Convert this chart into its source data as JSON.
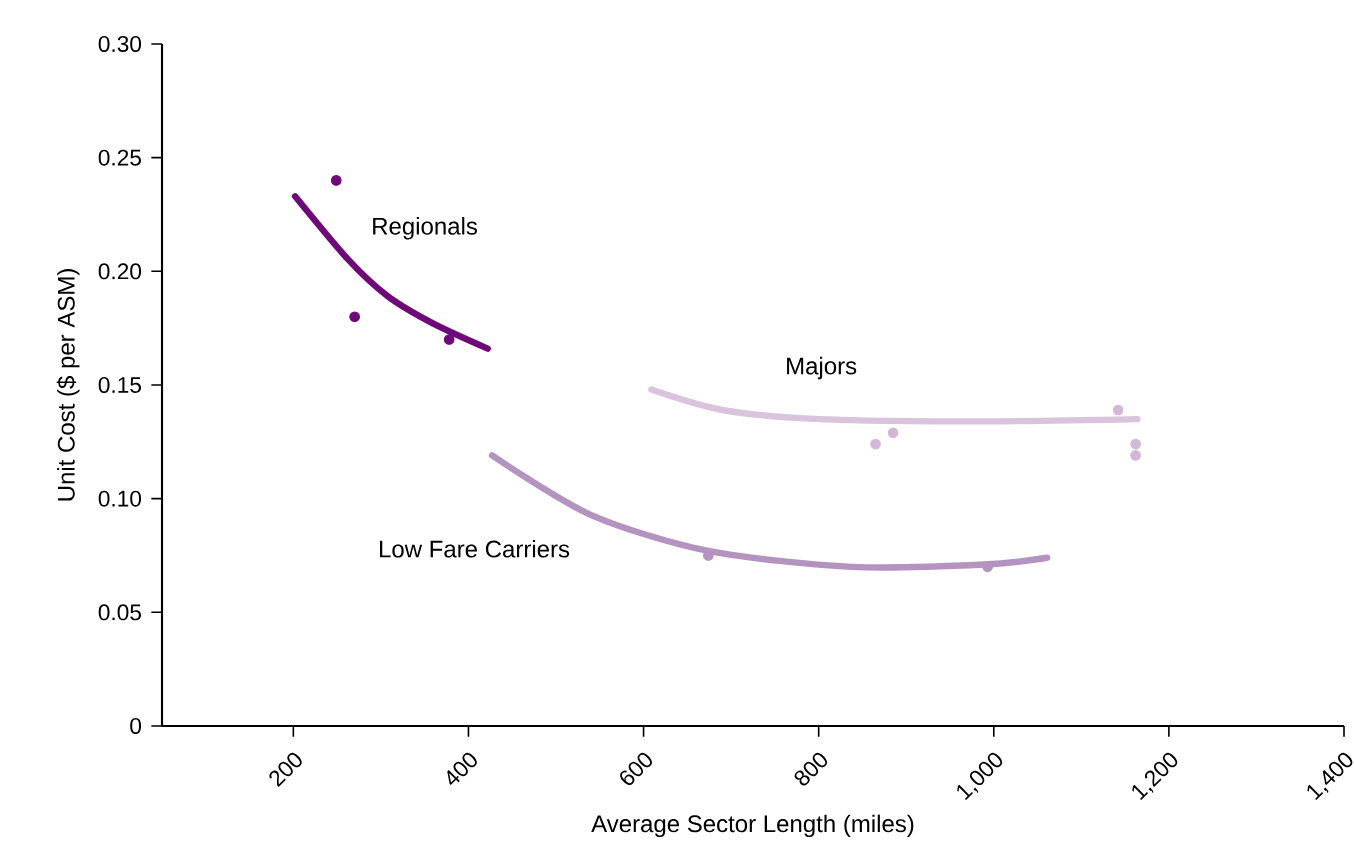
{
  "chart_data": {
    "type": "scatter",
    "xlabel": "Average Sector Length (miles)",
    "ylabel": "Unit Cost ($ per ASM)",
    "xlim": [
      50,
      1400
    ],
    "ylim": [
      0,
      0.3
    ],
    "xticks": [
      200,
      400,
      600,
      800,
      {
        "value": 1000,
        "label": "1,000"
      },
      {
        "value": 1200,
        "label": "1,200"
      },
      {
        "value": 1400,
        "label": "1,400"
      }
    ],
    "yticks": [
      0,
      {
        "value": 0.05,
        "label": "0.05"
      },
      {
        "value": 0.1,
        "label": "0.10"
      },
      {
        "value": 0.15,
        "label": "0.15"
      },
      {
        "value": 0.2,
        "label": "0.20"
      },
      {
        "value": 0.25,
        "label": "0.25"
      },
      {
        "value": 0.3,
        "label": "0.30"
      }
    ],
    "grid": false,
    "legend": false,
    "series": [
      {
        "type": "line",
        "name": "Regionals",
        "color": "#6e0a78",
        "marker": "none",
        "x": [
          202,
          263,
          308,
          360,
          422
        ],
        "values": [
          0.233,
          0.205,
          0.189,
          0.177,
          0.166
        ]
      },
      {
        "type": "scatter",
        "color": "#6e0a78",
        "marker": "circle",
        "x": [
          249,
          270,
          378
        ],
        "values": [
          0.24,
          0.18,
          0.17
        ]
      },
      {
        "type": "line",
        "name": "Majors",
        "color": "#d9c3dd",
        "marker": "none",
        "x": [
          609,
          690,
          802,
          989,
          1164
        ],
        "values": [
          0.148,
          0.139,
          0.135,
          0.134,
          0.135
        ]
      },
      {
        "type": "scatter",
        "color": "#d2b8d6",
        "marker": "circle",
        "x": [
          865,
          885,
          1142,
          1162,
          1162
        ],
        "values": [
          0.124,
          0.129,
          0.139,
          0.124,
          0.119
        ]
      },
      {
        "type": "line",
        "name": "Low Fare Carriers",
        "color": "#b593c1",
        "marker": "none",
        "x": [
          427,
          539,
          674,
          838,
          989,
          1061
        ],
        "values": [
          0.119,
          0.093,
          0.077,
          0.07,
          0.071,
          0.074
        ]
      },
      {
        "type": "scatter",
        "color": "#b593c1",
        "marker": "circle",
        "x": [
          674,
          993
        ],
        "values": [
          0.075,
          0.07
        ]
      }
    ]
  }
}
